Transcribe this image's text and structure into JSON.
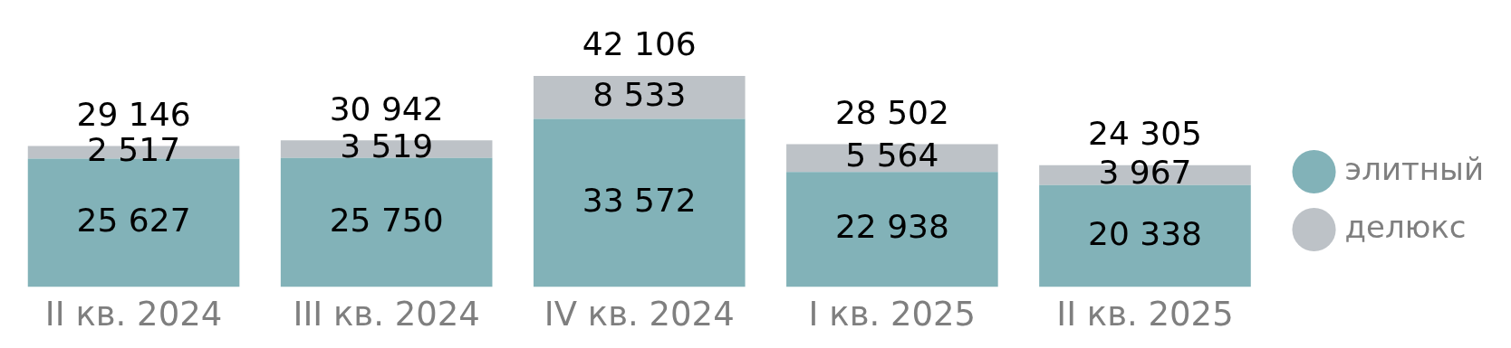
{
  "chart_data": {
    "type": "bar",
    "stacked": true,
    "categories": [
      "II кв. 2024",
      "III кв. 2024",
      "IV кв. 2024",
      "I кв. 2025",
      "II кв. 2025"
    ],
    "series": [
      {
        "name": "элитный",
        "color": "#82b2b8",
        "values": [
          25627,
          25750,
          33572,
          22938,
          20338
        ],
        "value_labels": [
          "25 627",
          "25 750",
          "33 572",
          "22 938",
          "20 338"
        ]
      },
      {
        "name": "делюкс",
        "color": "#bdc2c7",
        "values": [
          2517,
          3519,
          8533,
          5564,
          3967
        ],
        "value_labels": [
          "2 517",
          "3 519",
          "8 533",
          "5 564",
          "3 967"
        ]
      }
    ],
    "annotations": [
      "29 146",
      "30 942",
      "42 106",
      "28 502",
      "24 305"
    ],
    "legend": "right",
    "grid": false
  }
}
